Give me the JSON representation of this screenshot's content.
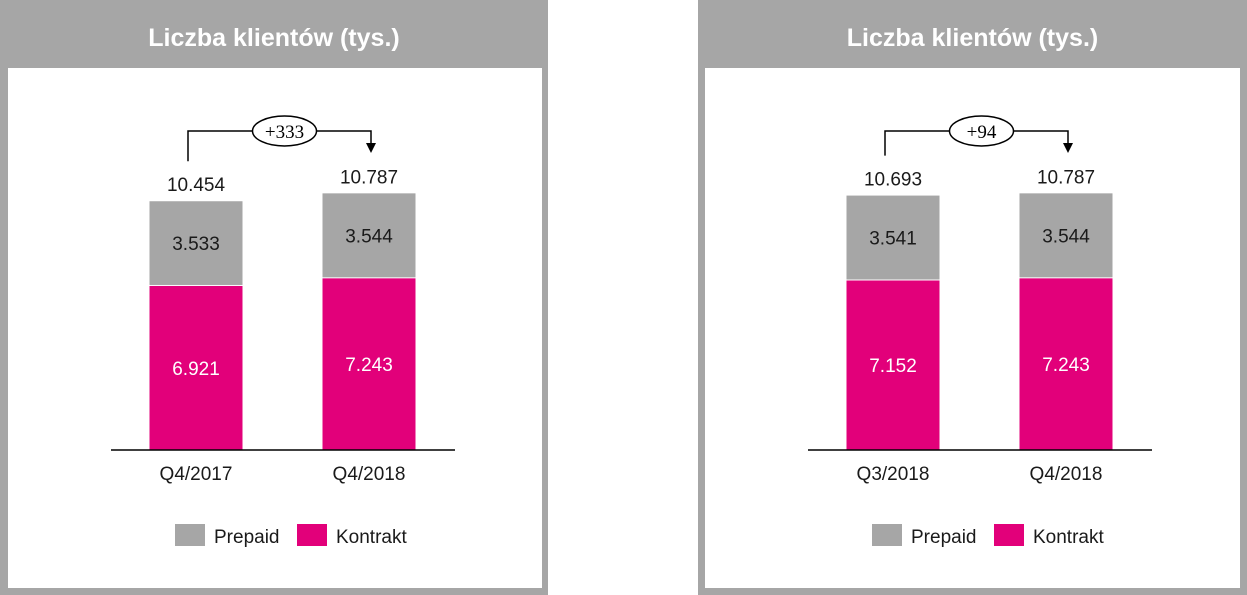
{
  "colors": {
    "prepaid": "#a6a6a6",
    "kontrakt": "#e2007a",
    "frame": "#a6a6a6"
  },
  "chart_data": [
    {
      "type": "bar",
      "stacked": true,
      "title": "Liczba klientów (tys.)",
      "categories": [
        "Q4/2017",
        "Q4/2018"
      ],
      "series": [
        {
          "name": "Kontrakt",
          "values": [
            6.921,
            7.243
          ],
          "labels": [
            "6.921",
            "7.243"
          ]
        },
        {
          "name": "Prepaid",
          "values": [
            3.533,
            3.544
          ],
          "labels": [
            "3.533",
            "3.544"
          ]
        }
      ],
      "totals": [
        "10.454",
        "10.787"
      ],
      "change_label": "+333",
      "legend": [
        "Prepaid",
        "Kontrakt"
      ],
      "legend_position": "bottom"
    },
    {
      "type": "bar",
      "stacked": true,
      "title": "Liczba klientów (tys.)",
      "categories": [
        "Q3/2018",
        "Q4/2018"
      ],
      "series": [
        {
          "name": "Kontrakt",
          "values": [
            7.152,
            7.243
          ],
          "labels": [
            "7.152",
            "7.243"
          ]
        },
        {
          "name": "Prepaid",
          "values": [
            3.541,
            3.544
          ],
          "labels": [
            "3.541",
            "3.544"
          ]
        }
      ],
      "totals": [
        "10.693",
        "10.787"
      ],
      "change_label": "+94",
      "legend": [
        "Prepaid",
        "Kontrakt"
      ],
      "legend_position": "bottom"
    }
  ]
}
